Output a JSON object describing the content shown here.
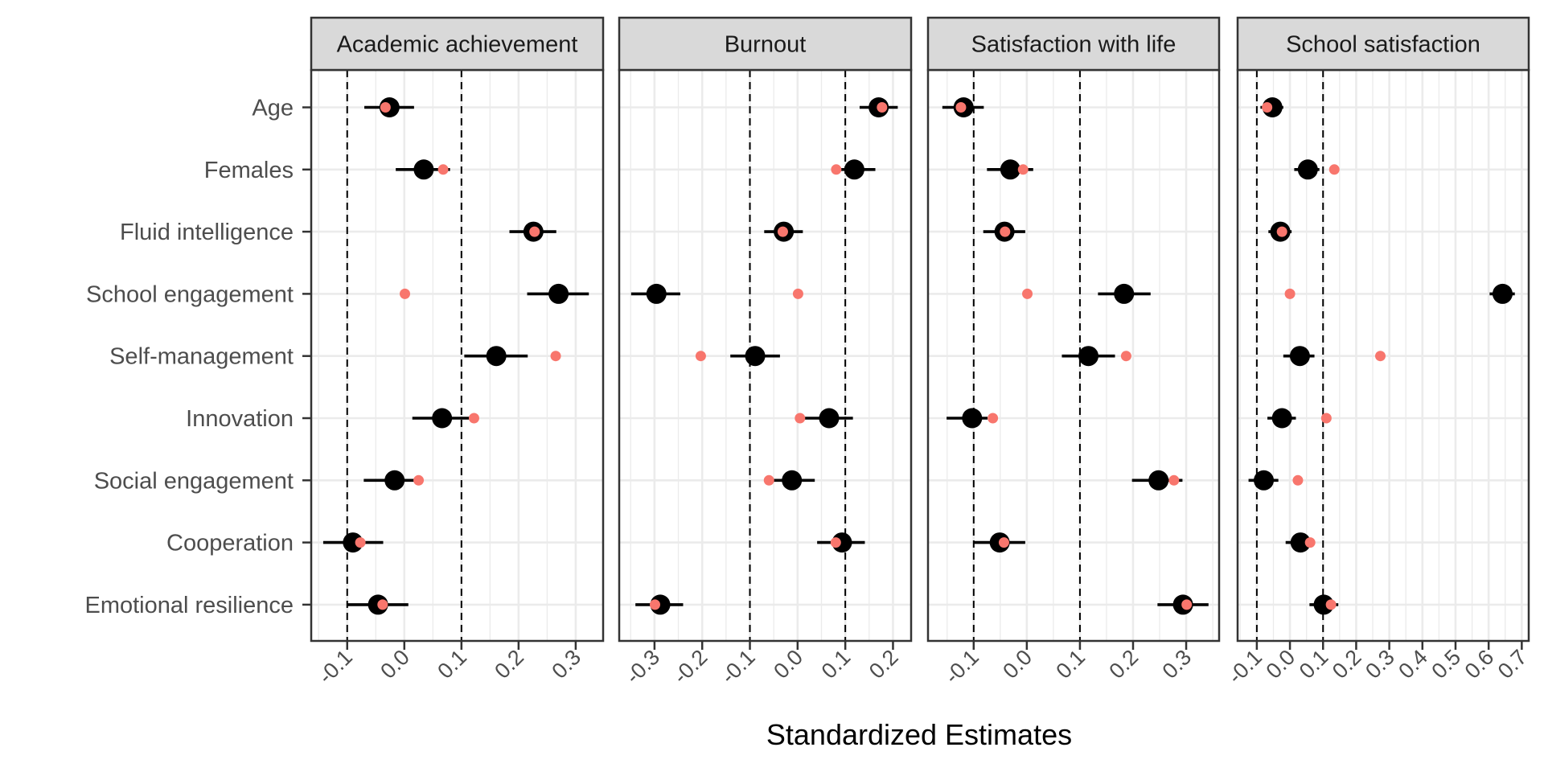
{
  "chart_data": {
    "type": "scatter",
    "subtype": "faceted coefficient (dot-and-whisker) plot",
    "xlabel": "Standardized Estimates",
    "ylabel": "",
    "grid": true,
    "legend": "none",
    "categories": [
      "Age",
      "Females",
      "Fluid intelligence",
      "School engagement",
      "Self-management",
      "Innovation",
      "Social engagement",
      "Cooperation",
      "Emotional resilience"
    ],
    "reference_lines": [
      -0.1,
      0.1
    ],
    "colors": {
      "estimate": "#000000",
      "secondary_estimate": "#F8766D",
      "grid": "#EBEBEB",
      "strip_fill": "#D9D9D9",
      "border": "#333333"
    },
    "panels": [
      {
        "title": "Academic achievement",
        "xlim": [
          -0.163,
          0.348
        ],
        "xticks": [
          -0.1,
          0.0,
          0.1,
          0.2,
          0.3
        ],
        "xtick_labels": [
          "-0.1",
          "0.0",
          "0.1",
          "0.2",
          "0.3"
        ],
        "estimate": [
          -0.026,
          0.034,
          0.226,
          0.27,
          0.161,
          0.066,
          -0.017,
          -0.09,
          -0.046
        ],
        "ci_low": [
          -0.07,
          -0.015,
          0.184,
          0.215,
          0.105,
          0.014,
          -0.071,
          -0.142,
          -0.101
        ],
        "ci_high": [
          0.017,
          0.08,
          0.266,
          0.323,
          0.216,
          0.116,
          0.017,
          -0.037,
          0.007
        ],
        "secondary_estimate": [
          -0.033,
          0.068,
          0.228,
          0.001,
          0.265,
          0.122,
          0.025,
          -0.077,
          -0.038
        ]
      },
      {
        "title": "Burnout",
        "xlim": [
          -0.374,
          0.238
        ],
        "xticks": [
          -0.3,
          -0.2,
          -0.1,
          0.0,
          0.1,
          0.2
        ],
        "xtick_labels": [
          "-0.3",
          "-0.2",
          "-0.1",
          "0.0",
          "0.1",
          "0.2"
        ],
        "estimate": [
          0.17,
          0.119,
          -0.029,
          -0.296,
          -0.089,
          0.066,
          -0.012,
          0.093,
          -0.288
        ],
        "ci_low": [
          0.13,
          0.091,
          -0.07,
          -0.349,
          -0.141,
          0.013,
          -0.052,
          0.041,
          -0.34
        ],
        "ci_high": [
          0.21,
          0.163,
          0.011,
          -0.246,
          -0.037,
          0.116,
          0.036,
          0.141,
          -0.24
        ],
        "secondary_estimate": [
          0.177,
          0.081,
          -0.031,
          0.001,
          -0.203,
          0.005,
          -0.06,
          0.08,
          -0.299
        ]
      },
      {
        "title": "Satisfaction with life",
        "xlim": [
          -0.186,
          0.362
        ],
        "xticks": [
          -0.1,
          0.0,
          0.1,
          0.2,
          0.3
        ],
        "xtick_labels": [
          "-0.1",
          "0.0",
          "0.1",
          "0.2",
          "0.3"
        ],
        "estimate": [
          -0.119,
          -0.031,
          -0.042,
          0.183,
          0.116,
          -0.103,
          0.248,
          -0.051,
          0.294
        ],
        "ci_low": [
          -0.159,
          -0.075,
          -0.082,
          0.134,
          0.066,
          -0.151,
          0.198,
          -0.1,
          0.246
        ],
        "ci_high": [
          -0.081,
          0.012,
          -0.003,
          0.233,
          0.166,
          -0.074,
          0.293,
          -0.003,
          0.342
        ],
        "secondary_estimate": [
          -0.124,
          -0.007,
          -0.041,
          0.001,
          0.187,
          -0.064,
          0.277,
          -0.043,
          0.301
        ]
      },
      {
        "title": "School satisfaction",
        "xlim": [
          -0.158,
          0.721
        ],
        "xticks": [
          -0.1,
          0.0,
          0.1,
          0.2,
          0.3,
          0.4,
          0.5,
          0.6,
          0.7
        ],
        "xtick_labels": [
          "-0.1",
          "0.0",
          "0.1",
          "0.2",
          "0.3",
          "0.4",
          "0.5",
          "0.6",
          "0.7"
        ],
        "estimate": [
          -0.053,
          0.054,
          -0.029,
          0.642,
          0.03,
          -0.024,
          -0.079,
          0.032,
          0.102
        ],
        "ci_low": [
          -0.089,
          0.013,
          -0.065,
          0.603,
          -0.02,
          -0.068,
          -0.125,
          -0.013,
          0.059
        ],
        "ci_high": [
          -0.02,
          0.089,
          0.005,
          0.679,
          0.074,
          0.018,
          -0.035,
          0.057,
          0.146
        ],
        "secondary_estimate": [
          -0.069,
          0.134,
          -0.024,
          0.0,
          0.273,
          0.11,
          0.024,
          0.061,
          0.124
        ]
      }
    ]
  }
}
